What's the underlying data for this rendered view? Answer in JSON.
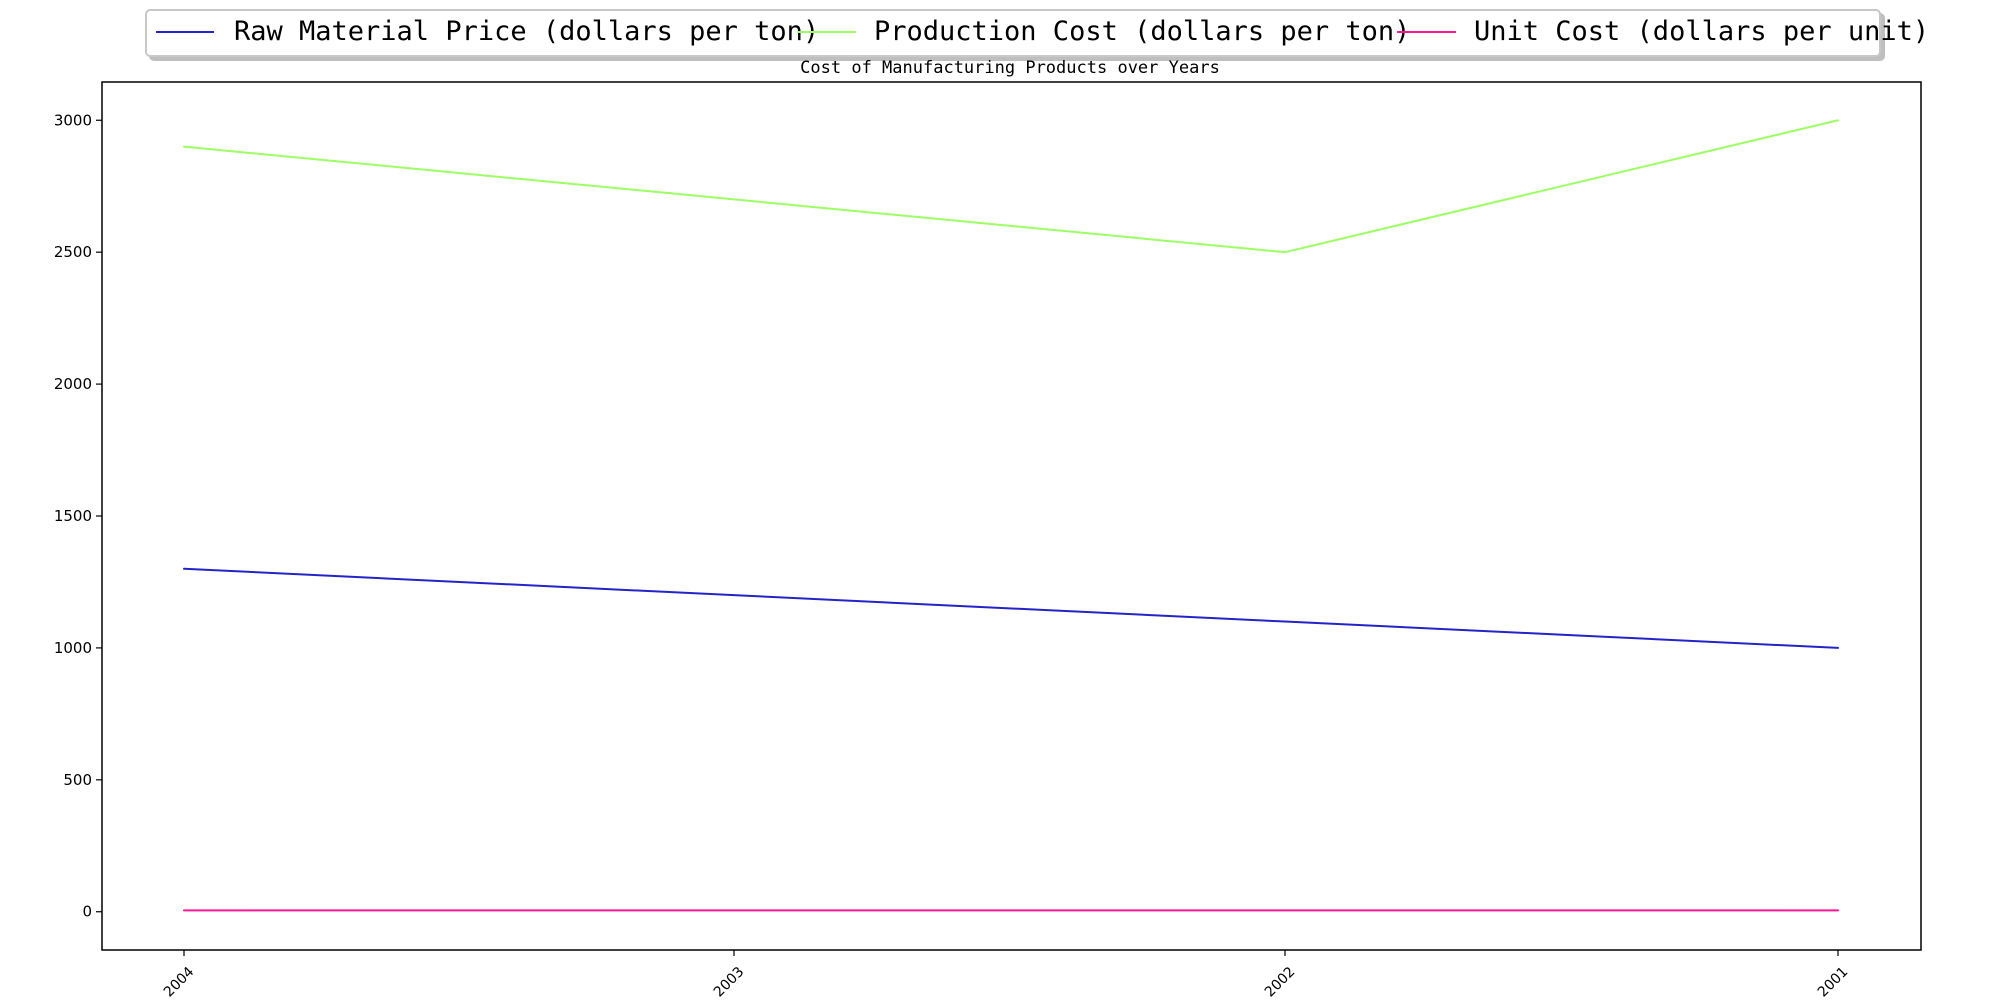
{
  "chart_data": {
    "type": "line",
    "title": "Cost of Manufacturing Products over Years",
    "xlabel": "",
    "ylabel": "",
    "categories": [
      "2004",
      "2003",
      "2002",
      "2001"
    ],
    "series": [
      {
        "name": "Raw Material Price (dollars per ton)",
        "values": [
          1300,
          1200,
          1100,
          1000
        ],
        "color": "#2323c8"
      },
      {
        "name": "Production Cost (dollars per ton)",
        "values": [
          2900,
          2700,
          2500,
          3000
        ],
        "color": "#9cff63"
      },
      {
        "name": "Unit Cost (dollars per unit)",
        "values": [
          5,
          5,
          5,
          5
        ],
        "color": "#ff1493"
      }
    ],
    "y_ticks": [
      0,
      500,
      1000,
      1500,
      2000,
      2500,
      3000
    ],
    "ylim": [
      -145,
      3145
    ],
    "grid": false,
    "legend_position": "top-center"
  }
}
